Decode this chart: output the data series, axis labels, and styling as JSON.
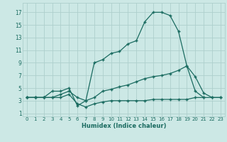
{
  "xlabel": "Humidex (Indice chaleur)",
  "bg_color": "#cce8e5",
  "grid_color": "#aecfcc",
  "line_color": "#1a6b60",
  "xlim": [
    -0.5,
    23.5
  ],
  "ylim": [
    0.5,
    18.5
  ],
  "xticks": [
    0,
    1,
    2,
    3,
    4,
    5,
    6,
    7,
    8,
    9,
    10,
    11,
    12,
    13,
    14,
    15,
    16,
    17,
    18,
    19,
    20,
    21,
    22,
    23
  ],
  "yticks": [
    1,
    3,
    5,
    7,
    9,
    11,
    13,
    15,
    17
  ],
  "curve1_x": [
    0,
    1,
    2,
    3,
    4,
    5,
    6,
    7,
    8,
    9,
    10,
    11,
    12,
    13,
    14,
    15,
    16,
    17,
    18,
    19,
    20,
    21
  ],
  "curve1_y": [
    3.5,
    3.5,
    3.5,
    4.5,
    4.5,
    5.0,
    2.2,
    3.0,
    9.0,
    9.5,
    10.5,
    10.8,
    12.0,
    12.5,
    15.5,
    17.0,
    17.0,
    16.5,
    14.0,
    8.5,
    4.5,
    3.5
  ],
  "curve2_x": [
    0,
    1,
    2,
    3,
    4,
    5,
    6,
    7,
    8,
    9,
    10,
    11,
    12,
    13,
    14,
    15,
    16,
    17,
    18,
    19,
    20,
    21,
    22,
    23
  ],
  "curve2_y": [
    3.5,
    3.5,
    3.5,
    3.5,
    4.0,
    4.5,
    3.5,
    3.0,
    3.5,
    4.5,
    4.8,
    5.2,
    5.5,
    6.0,
    6.5,
    6.8,
    7.0,
    7.3,
    7.8,
    8.5,
    6.8,
    4.2,
    3.5,
    3.5
  ],
  "curve3_x": [
    0,
    1,
    2,
    3,
    4,
    5,
    6,
    7,
    8,
    9,
    10,
    11,
    12,
    13,
    14,
    15,
    16,
    17,
    18,
    19,
    20,
    21,
    22,
    23
  ],
  "curve3_y": [
    3.5,
    3.5,
    3.5,
    3.5,
    3.5,
    4.0,
    2.5,
    2.0,
    2.5,
    2.8,
    3.0,
    3.0,
    3.0,
    3.0,
    3.0,
    3.2,
    3.2,
    3.2,
    3.2,
    3.2,
    3.5,
    3.5,
    3.5,
    3.5
  ]
}
